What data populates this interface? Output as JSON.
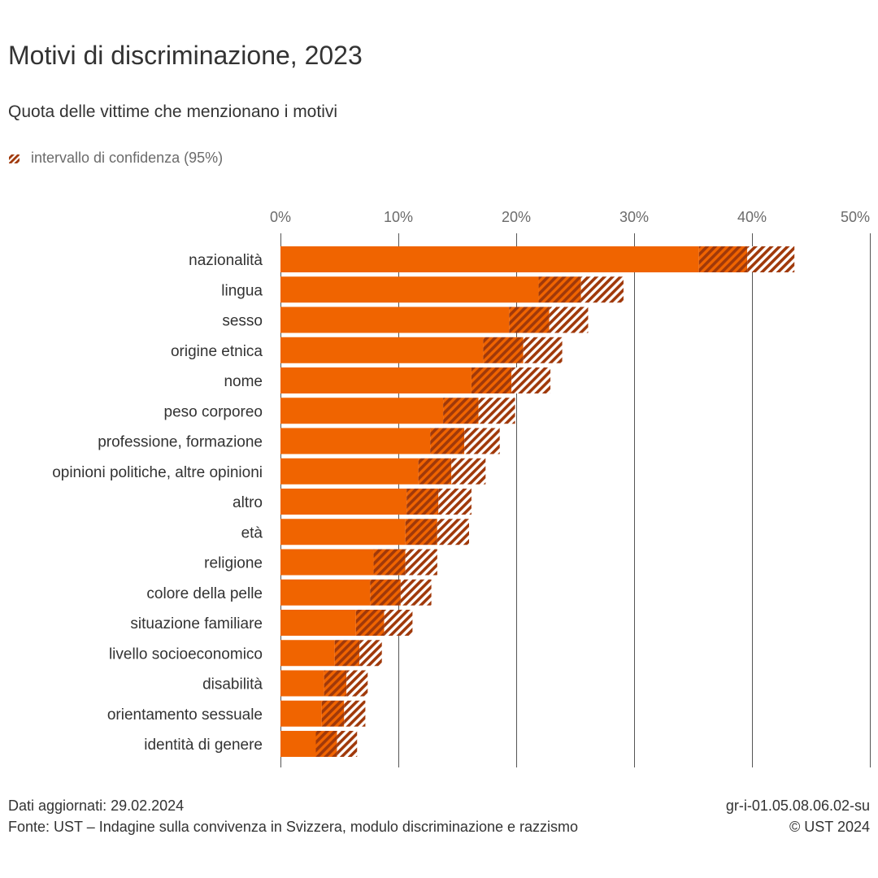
{
  "title": "Motivi di discriminazione, 2023",
  "subtitle": "Quota delle vittime che menzionano i motivi",
  "legend": {
    "ci_label": "intervallo di confidenza (95%)",
    "ci_icon": "hatched-square-icon"
  },
  "colors": {
    "bar": "#f06400",
    "ci_stripe": "#a0390a",
    "grid": "#555555",
    "text": "#333333",
    "muted": "#6b6b6b"
  },
  "footer": {
    "updated": "Dati aggiornati: 29.02.2024",
    "source": "Fonte: UST – Indagine sulla convivenza in Svizzera, modulo discriminazione e razzismo",
    "code": "gr-i-01.05.08.06.02-su",
    "copyright": "© UST 2024"
  },
  "chart_data": {
    "type": "bar",
    "orientation": "horizontal",
    "title": "Motivi di discriminazione, 2023",
    "subtitle": "Quota delle vittime che menzionano i motivi",
    "xlabel": "",
    "ylabel": "",
    "xlim": [
      0,
      50
    ],
    "xticks": [
      0,
      10,
      20,
      30,
      40,
      50
    ],
    "xtick_labels": [
      "0%",
      "10%",
      "20%",
      "30%",
      "40%",
      "50%"
    ],
    "grid": true,
    "legend": "top-left",
    "categories": [
      "nazionalità",
      "lingua",
      "sesso",
      "origine etnica",
      "nome",
      "peso corporeo",
      "professione, formazione",
      "opinioni politiche, altre opinioni",
      "altro",
      "età",
      "religione",
      "colore della pelle",
      "situazione familiare",
      "livello socioeconomico",
      "disabilità",
      "orientamento sessuale",
      "identità di genere"
    ],
    "series": [
      {
        "name": "quota",
        "values": [
          39.6,
          25.5,
          22.8,
          20.6,
          19.6,
          16.8,
          15.6,
          14.5,
          13.4,
          13.3,
          10.6,
          10.2,
          8.8,
          6.7,
          5.6,
          5.4,
          4.8
        ]
      },
      {
        "name": "intervallo di confidenza (95%) – limite inferiore",
        "values": [
          35.5,
          21.9,
          19.4,
          17.2,
          16.2,
          13.8,
          12.7,
          11.7,
          10.7,
          10.6,
          7.9,
          7.6,
          6.4,
          4.6,
          3.7,
          3.5,
          3.0
        ]
      },
      {
        "name": "intervallo di confidenza (95%) – limite superiore",
        "values": [
          43.6,
          29.1,
          26.1,
          23.9,
          22.9,
          19.9,
          18.6,
          17.4,
          16.2,
          16.0,
          13.3,
          12.8,
          11.2,
          8.6,
          7.4,
          7.2,
          6.5
        ]
      }
    ]
  }
}
